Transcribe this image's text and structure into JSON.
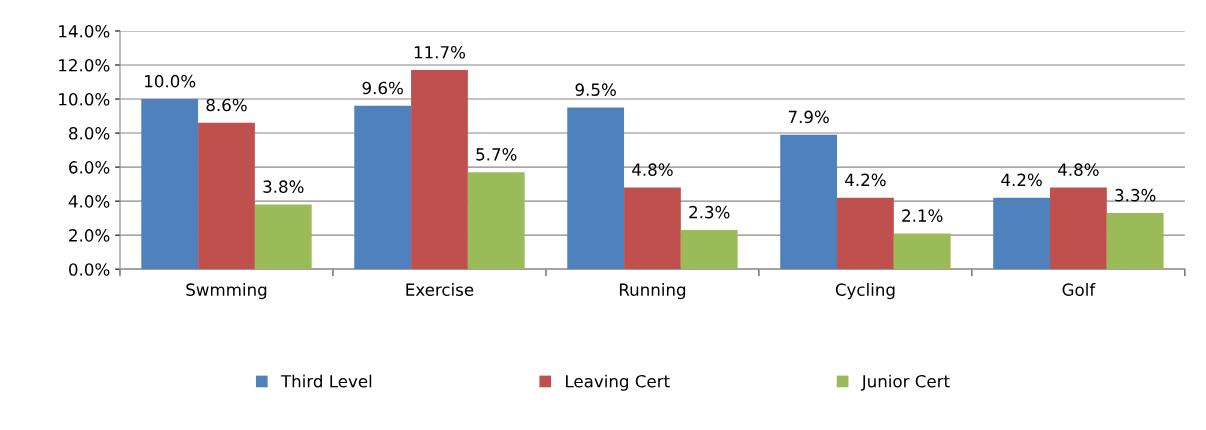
{
  "chart_data": {
    "type": "bar",
    "categories": [
      "Swmming",
      "Exercise",
      "Running",
      "Cycling",
      "Golf"
    ],
    "series": [
      {
        "name": "Third Level",
        "color": "#4f81bd",
        "values": [
          10.0,
          9.6,
          9.5,
          7.9,
          4.2
        ],
        "value_labels": [
          "10.0%",
          "9.6%",
          "9.5%",
          "7.9%",
          "4.2%"
        ]
      },
      {
        "name": "Leaving Cert",
        "color": "#c0504d",
        "values": [
          8.6,
          11.7,
          4.8,
          4.2,
          4.8
        ],
        "value_labels": [
          "8.6%",
          "11.7%",
          "4.8%",
          "4.2%",
          "4.8%"
        ]
      },
      {
        "name": "Junior Cert",
        "color": "#9bbb59",
        "values": [
          3.8,
          5.7,
          2.3,
          2.1,
          3.3
        ],
        "value_labels": [
          "3.8%",
          "5.7%",
          "2.3%",
          "2.1%",
          "3.3%"
        ]
      }
    ],
    "ylim": [
      0,
      14
    ],
    "yticks": [
      {
        "value": 0,
        "label": "0.0%"
      },
      {
        "value": 2,
        "label": "2.0%"
      },
      {
        "value": 4,
        "label": "4.0%"
      },
      {
        "value": 6,
        "label": "6.0%"
      },
      {
        "value": 8,
        "label": "8.0%"
      },
      {
        "value": 10,
        "label": "10.0%"
      },
      {
        "value": 12,
        "label": "12.0%"
      },
      {
        "value": 14,
        "label": "14.0%"
      }
    ],
    "grid": "y",
    "legend": "bottom"
  }
}
